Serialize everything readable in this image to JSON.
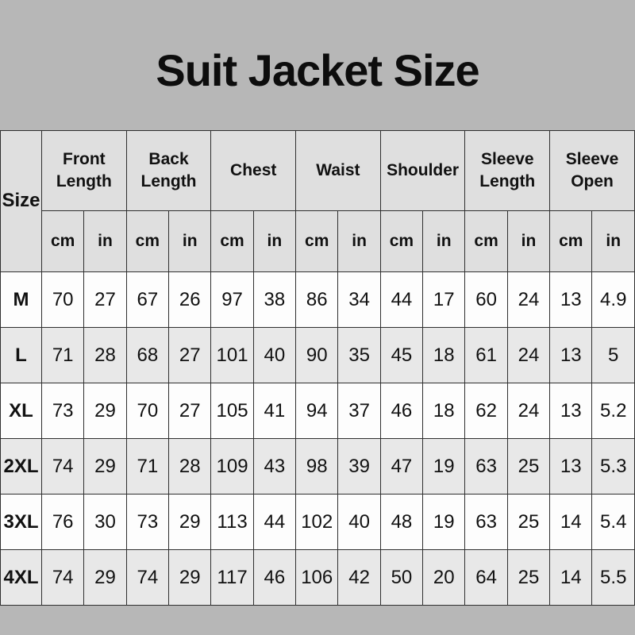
{
  "page": {
    "title": "Suit Jacket Size"
  },
  "colors": {
    "page_bg": "#b7b7b7",
    "header_bg": "#dfdfdf",
    "row_white": "#fdfdfd",
    "row_gray": "#e8e8e8",
    "border": "#2f2f2f",
    "text": "#111111"
  },
  "chart_data": {
    "type": "table",
    "title": "Suit Jacket Size",
    "size_column_header": "Size",
    "measure_groups": [
      "Front Length",
      "Back Length",
      "Chest",
      "Waist",
      "Shoulder",
      "Sleeve Length",
      "Sleeve Open"
    ],
    "unit_headers": [
      "cm",
      "in"
    ],
    "rows": [
      {
        "size": "M",
        "values": [
          70,
          27,
          67,
          26,
          97,
          38,
          86,
          34,
          44,
          17,
          60,
          24,
          13,
          4.9
        ]
      },
      {
        "size": "L",
        "values": [
          71,
          28,
          68,
          27,
          101,
          40,
          90,
          35,
          45,
          18,
          61,
          24,
          13,
          5
        ]
      },
      {
        "size": "XL",
        "values": [
          73,
          29,
          70,
          27,
          105,
          41,
          94,
          37,
          46,
          18,
          62,
          24,
          13,
          5.2
        ]
      },
      {
        "size": "2XL",
        "values": [
          74,
          29,
          71,
          28,
          109,
          43,
          98,
          39,
          47,
          19,
          63,
          25,
          13,
          5.3
        ]
      },
      {
        "size": "3XL",
        "values": [
          76,
          30,
          73,
          29,
          113,
          44,
          102,
          40,
          48,
          19,
          63,
          25,
          14,
          5.4
        ]
      },
      {
        "size": "4XL",
        "values": [
          74,
          29,
          74,
          29,
          117,
          46,
          106,
          42,
          50,
          20,
          64,
          25,
          14,
          5.5
        ]
      }
    ]
  }
}
